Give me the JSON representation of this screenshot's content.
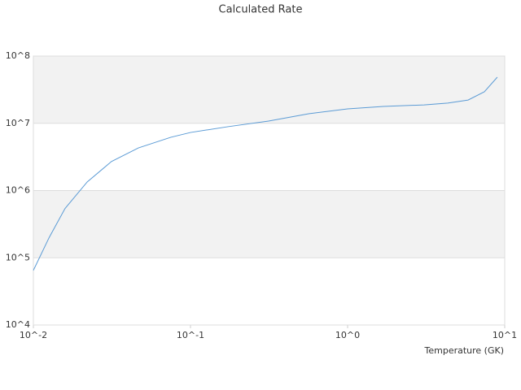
{
  "chart_data": {
    "type": "line",
    "title": "Calculated Rate",
    "x_label": "Temperature (GK)",
    "x": [
      0.01,
      0.0126,
      0.0159,
      0.022,
      0.0314,
      0.0466,
      0.075,
      0.1,
      0.173,
      0.314,
      0.57,
      1,
      1.69,
      3.07,
      4.34,
      5.85,
      7.42,
      8.97
    ],
    "values": [
      65000,
      200000,
      540000,
      1340000,
      2700000,
      4300000,
      6200000,
      7300000,
      8900000,
      10800000,
      13900000,
      16400000,
      17800000,
      18800000,
      20000000,
      22200000,
      29400000,
      48500000
    ],
    "color": "#5b9bd5",
    "xlim": [
      0.01,
      10
    ],
    "ylim": [
      10000,
      100000000
    ],
    "xticks": [
      {
        "value": 0.01,
        "label": "10^-2"
      },
      {
        "value": 0.1,
        "label": "10^-1"
      },
      {
        "value": 1,
        "label": "10^0"
      },
      {
        "value": 10,
        "label": "10^1"
      }
    ],
    "yticks": [
      {
        "value": 10000,
        "label": "10^4"
      },
      {
        "value": 100000,
        "label": "10^5"
      },
      {
        "value": 1000000,
        "label": "10^6"
      },
      {
        "value": 10000000,
        "label": "10^7"
      },
      {
        "value": 100000000,
        "label": "10^8"
      }
    ],
    "x_scale": "log",
    "y_scale": "log",
    "grid": true
  }
}
